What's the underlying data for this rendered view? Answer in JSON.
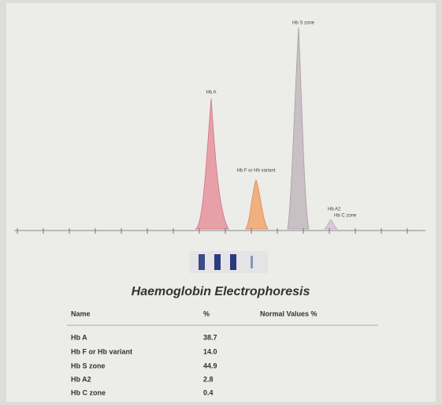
{
  "electropherogram": {
    "peak_labels": [
      "Hb A",
      "Hb F or Hb variant",
      "Hb S zone",
      "Hb A2",
      "Hb C zone"
    ]
  },
  "title": "Haemoglobin Electrophoresis",
  "table": {
    "headers": [
      "Name",
      "%",
      "Normal Values %"
    ],
    "rows": [
      [
        "Hb A",
        "38.7"
      ],
      [
        "Hb F or Hb variant",
        "14.0"
      ],
      [
        "Hb S zone",
        "44.9"
      ],
      [
        "Hb A2",
        "2.8"
      ],
      [
        "Hb C zone",
        "0.4"
      ]
    ]
  }
}
